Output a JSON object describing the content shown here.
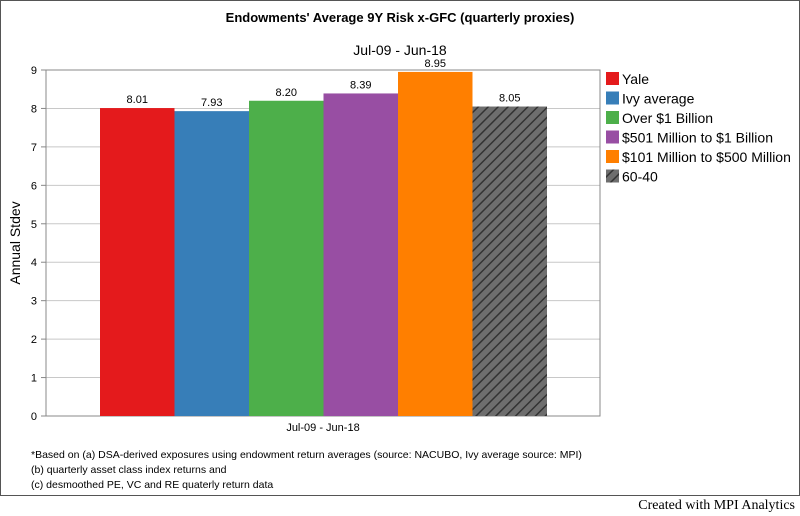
{
  "chart_data": {
    "type": "bar",
    "title": "Endowments' Average 9Y Risk x-GFC (quarterly proxies)",
    "subtitle": "Jul-09 - Jun-18",
    "ylabel": "Annual Stdev",
    "xlabel": "",
    "categories": [
      "Jul-09 - Jun-18"
    ],
    "ylim": [
      0,
      9
    ],
    "yticks": [
      "0",
      "1",
      "2",
      "3",
      "4",
      "5",
      "6",
      "7",
      "8",
      "9"
    ],
    "grid": true,
    "legend_position": "right",
    "series": [
      {
        "name": "Yale",
        "value": 8.01,
        "label": "8.01",
        "color": "#e41a1c",
        "pattern": "solid"
      },
      {
        "name": "Ivy average",
        "value": 7.93,
        "label": "7.93",
        "color": "#377eb8",
        "pattern": "solid"
      },
      {
        "name": "Over $1 Billion",
        "value": 8.2,
        "label": "8.20",
        "color": "#4daf4a",
        "pattern": "solid"
      },
      {
        "name": "$501 Million to $1 Billion",
        "value": 8.39,
        "label": "8.39",
        "color": "#984ea3",
        "pattern": "solid"
      },
      {
        "name": "$101 Million to $500 Million",
        "value": 8.95,
        "label": "8.95",
        "color": "#ff7f00",
        "pattern": "solid"
      },
      {
        "name": "60-40",
        "value": 8.05,
        "label": "8.05",
        "color": "#555555",
        "pattern": "hatched"
      }
    ]
  },
  "footnotes": [
    "*Based on (a) DSA-derived exposures using endowment return averages (source: NACUBO, Ivy average source: MPI)",
    " (b) quarterly asset class index returns and",
    " (c) desmoothed PE, VC and RE quaterly return data"
  ],
  "credit": "Created with MPI Analytics"
}
